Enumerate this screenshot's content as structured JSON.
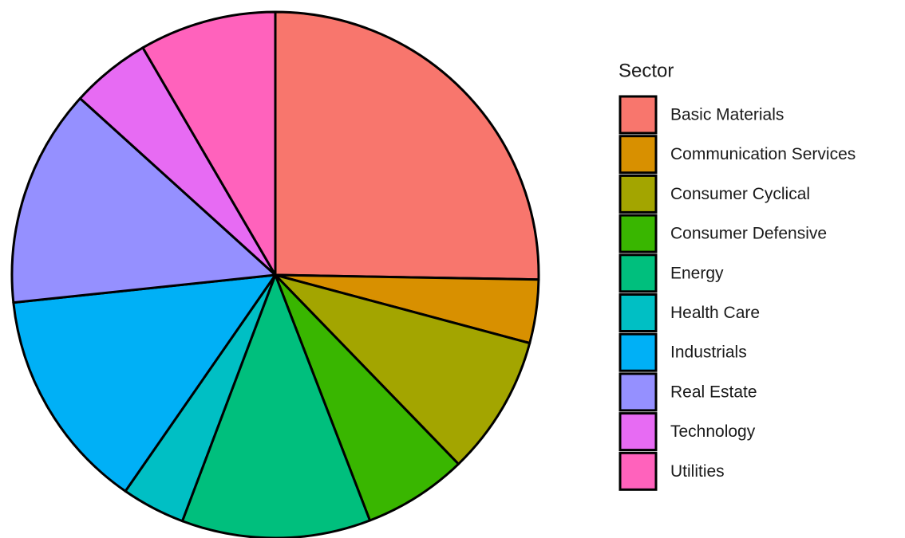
{
  "chart_data": {
    "type": "pie",
    "legend_title": "Sector",
    "categories": [
      "Basic Materials",
      "Communication Services",
      "Consumer Cyclical",
      "Consumer Defensive",
      "Energy",
      "Health Care",
      "Industrials",
      "Real Estate",
      "Technology",
      "Utilities"
    ],
    "values": [
      25.3,
      3.9,
      8.6,
      6.4,
      11.6,
      3.9,
      13.7,
      13.4,
      4.9,
      8.4
    ],
    "colors": [
      "#F8766D",
      "#D89000",
      "#A3A500",
      "#39B600",
      "#00BF7D",
      "#00BFC4",
      "#00B0F6",
      "#9590FF",
      "#E76BF3",
      "#FF62BC"
    ],
    "legend": "right"
  }
}
